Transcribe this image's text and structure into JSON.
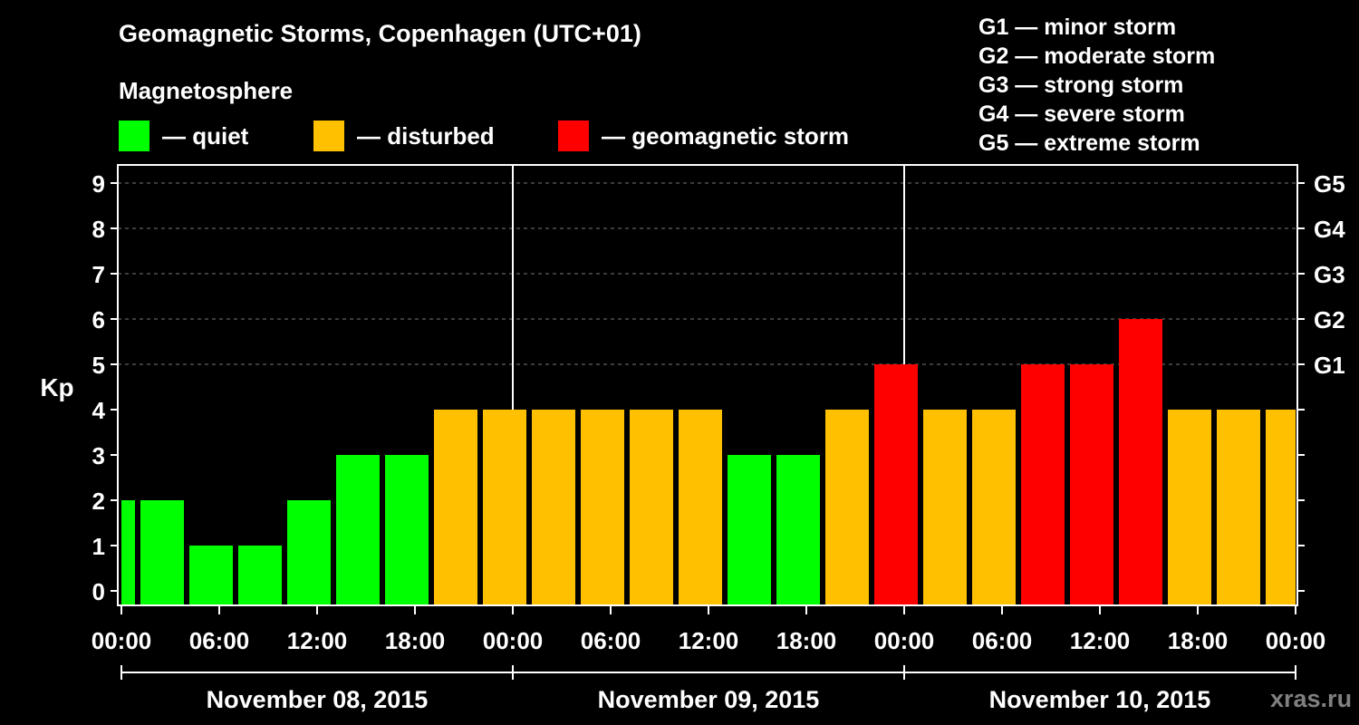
{
  "header": {
    "title": "Geomagnetic Storms, Copenhagen (UTC+01)",
    "subtitle": "Magnetosphere"
  },
  "legend": [
    {
      "label": "— quiet",
      "color": "#00ff00"
    },
    {
      "label": "— disturbed",
      "color": "#ffc000"
    },
    {
      "label": "— geomagnetic storm",
      "color": "#ff0000"
    }
  ],
  "storm_levels": [
    "G1 — minor storm",
    "G2 — moderate storm",
    "G3 — strong storm",
    "G4 — severe storm",
    "G5 — extreme storm"
  ],
  "watermark": "xras.ru",
  "colors": {
    "quiet": "#00ff00",
    "disturbed": "#ffc000",
    "storm": "#ff0000",
    "background": "#000000",
    "axis": "#ffffff"
  },
  "chart_data": {
    "type": "bar",
    "title": "Geomagnetic Storms, Copenhagen (UTC+01)",
    "ylabel": "Kp",
    "ylim": [
      0,
      9
    ],
    "yticks": [
      "0",
      "1",
      "2",
      "3",
      "4",
      "5",
      "6",
      "7",
      "8",
      "9"
    ],
    "right_ticks": [
      {
        "kp": 5,
        "label": "G1"
      },
      {
        "kp": 6,
        "label": "G2"
      },
      {
        "kp": 7,
        "label": "G3"
      },
      {
        "kp": 8,
        "label": "G4"
      },
      {
        "kp": 9,
        "label": "G5"
      }
    ],
    "x_range_hours": [
      0,
      72
    ],
    "xtick_labels": [
      "00:00",
      "06:00",
      "12:00",
      "18:00",
      "00:00",
      "06:00",
      "12:00",
      "18:00",
      "00:00",
      "06:00",
      "12:00",
      "18:00",
      "00:00"
    ],
    "days": [
      "November 08, 2015",
      "November 09, 2015",
      "November 10, 2015"
    ],
    "bars": [
      {
        "start": 0,
        "end": 1,
        "value": 2,
        "level": "quiet"
      },
      {
        "start": 1,
        "end": 4,
        "value": 2,
        "level": "quiet"
      },
      {
        "start": 4,
        "end": 7,
        "value": 1,
        "level": "quiet"
      },
      {
        "start": 7,
        "end": 10,
        "value": 1,
        "level": "quiet"
      },
      {
        "start": 10,
        "end": 13,
        "value": 2,
        "level": "quiet"
      },
      {
        "start": 13,
        "end": 16,
        "value": 3,
        "level": "quiet"
      },
      {
        "start": 16,
        "end": 19,
        "value": 3,
        "level": "quiet"
      },
      {
        "start": 19,
        "end": 22,
        "value": 4,
        "level": "disturbed"
      },
      {
        "start": 22,
        "end": 25,
        "value": 4,
        "level": "disturbed"
      },
      {
        "start": 25,
        "end": 28,
        "value": 4,
        "level": "disturbed"
      },
      {
        "start": 28,
        "end": 31,
        "value": 4,
        "level": "disturbed"
      },
      {
        "start": 31,
        "end": 34,
        "value": 4,
        "level": "disturbed"
      },
      {
        "start": 34,
        "end": 37,
        "value": 4,
        "level": "disturbed"
      },
      {
        "start": 37,
        "end": 40,
        "value": 3,
        "level": "quiet"
      },
      {
        "start": 40,
        "end": 43,
        "value": 3,
        "level": "quiet"
      },
      {
        "start": 43,
        "end": 46,
        "value": 4,
        "level": "disturbed"
      },
      {
        "start": 46,
        "end": 49,
        "value": 5,
        "level": "storm"
      },
      {
        "start": 49,
        "end": 52,
        "value": 4,
        "level": "disturbed"
      },
      {
        "start": 52,
        "end": 55,
        "value": 4,
        "level": "disturbed"
      },
      {
        "start": 55,
        "end": 58,
        "value": 5,
        "level": "storm"
      },
      {
        "start": 58,
        "end": 61,
        "value": 5,
        "level": "storm"
      },
      {
        "start": 61,
        "end": 64,
        "value": 6,
        "level": "storm"
      },
      {
        "start": 64,
        "end": 67,
        "value": 4,
        "level": "disturbed"
      },
      {
        "start": 67,
        "end": 70,
        "value": 4,
        "level": "disturbed"
      },
      {
        "start": 70,
        "end": 72,
        "value": 4,
        "level": "disturbed"
      }
    ]
  }
}
